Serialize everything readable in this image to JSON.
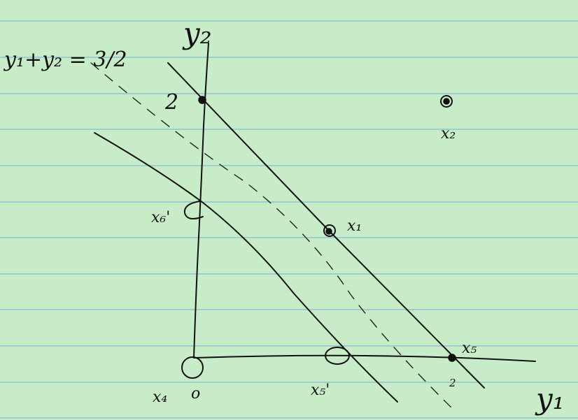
{
  "diagram": {
    "axis_labels": {
      "vertical": "y₂",
      "horizontal": "y₁"
    },
    "line_equation": "y₁+y₂ = 3/2",
    "tick_labels": {
      "y2_tick": "2",
      "y1_tick": "2"
    },
    "points": [
      {
        "id": "x1",
        "label": "x₁",
        "style": "filled"
      },
      {
        "id": "x2",
        "label": "x₂",
        "style": "filled"
      },
      {
        "id": "x4",
        "label": "x₄",
        "extra": "o",
        "style": "open"
      },
      {
        "id": "x5",
        "label": "x₅",
        "style": "filled"
      },
      {
        "id": "x5p",
        "label": "x₅'",
        "style": "open"
      },
      {
        "id": "x6p",
        "label": "x₆'",
        "style": "open"
      }
    ],
    "colors": {
      "paper": "#c8ecc8",
      "rule": "#6fb0d8",
      "ink": "#111111"
    }
  }
}
